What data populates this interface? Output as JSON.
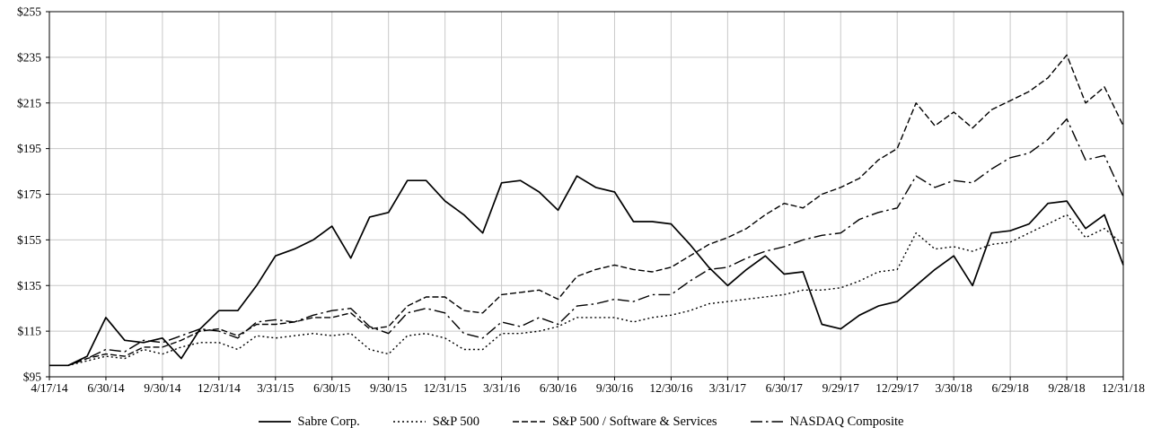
{
  "chart_data": {
    "type": "line",
    "title": "",
    "xlabel": "",
    "ylabel": "",
    "ylim": [
      95,
      255
    ],
    "y_ticks": [
      95,
      115,
      135,
      155,
      175,
      195,
      215,
      235,
      255
    ],
    "y_tick_labels": [
      "$95",
      "$115",
      "$135",
      "$155",
      "$175",
      "$195",
      "$215",
      "$235",
      "$255"
    ],
    "x_tick_labels": [
      "4/17/14",
      "6/30/14",
      "9/30/14",
      "12/31/14",
      "3/31/15",
      "6/30/15",
      "9/30/15",
      "12/31/15",
      "3/31/16",
      "6/30/16",
      "9/30/16",
      "12/30/16",
      "3/31/17",
      "6/30/17",
      "9/29/17",
      "12/29/17",
      "3/30/18",
      "6/29/18",
      "9/28/18",
      "12/31/18"
    ],
    "x_tick_indices": [
      0,
      3,
      6,
      9,
      12,
      15,
      18,
      21,
      24,
      27,
      30,
      33,
      36,
      39,
      42,
      45,
      48,
      51,
      54,
      57
    ],
    "points_per_series": 58,
    "grid": "horizontal+vertical",
    "legend_position": "bottom",
    "colors": {
      "axis": "#000000",
      "grid": "#c8c8c8",
      "background": "#ffffff",
      "line": "#000000"
    },
    "series": [
      {
        "id": "sabre",
        "name": "Sabre Corp.",
        "style": "solid",
        "color": "#000000",
        "values": [
          100,
          100,
          104,
          121,
          111,
          110,
          112,
          103,
          116,
          124,
          124,
          135,
          148,
          151,
          155,
          161,
          147,
          165,
          167,
          181,
          181,
          172,
          166,
          158,
          180,
          181,
          176,
          168,
          183,
          178,
          176,
          163,
          163,
          162,
          153,
          143,
          135,
          142,
          148,
          140,
          141,
          118,
          116,
          122,
          126,
          128,
          135,
          142,
          148,
          135,
          158,
          159,
          162,
          171,
          172,
          160,
          166,
          144
        ]
      },
      {
        "id": "sp500",
        "name": "S&P 500",
        "style": "dotted",
        "color": "#000000",
        "values": [
          100,
          100,
          102,
          104,
          103,
          107,
          105,
          108,
          110,
          110,
          107,
          113,
          112,
          113,
          114,
          113,
          114,
          107,
          105,
          113,
          114,
          112,
          107,
          107,
          114,
          114,
          115,
          117,
          121,
          121,
          121,
          119,
          121,
          122,
          124,
          127,
          128,
          129,
          130,
          131,
          133,
          133,
          134,
          137,
          141,
          142,
          158,
          151,
          152,
          150,
          153,
          154,
          158,
          162,
          166,
          156,
          160,
          153
        ]
      },
      {
        "id": "sp500-software-services",
        "name": "S&P 500 / Software & Services",
        "style": "dashed",
        "color": "#000000",
        "values": [
          100,
          100,
          103,
          105,
          104,
          108,
          108,
          111,
          115,
          116,
          113,
          118,
          118,
          119,
          121,
          121,
          123,
          116,
          117,
          126,
          130,
          130,
          124,
          123,
          131,
          132,
          133,
          129,
          139,
          142,
          144,
          142,
          141,
          143,
          148,
          153,
          156,
          160,
          166,
          171,
          169,
          175,
          178,
          182,
          190,
          195,
          215,
          205,
          211,
          204,
          212,
          216,
          220,
          226,
          236,
          215,
          222,
          205
        ]
      },
      {
        "id": "nasdaq",
        "name": "NASDAQ Composite",
        "style": "dashdot",
        "color": "#000000",
        "values": [
          100,
          100,
          103,
          107,
          106,
          111,
          110,
          113,
          116,
          115,
          112,
          119,
          120,
          119,
          122,
          124,
          125,
          117,
          114,
          123,
          125,
          123,
          114,
          112,
          119,
          117,
          121,
          118,
          126,
          127,
          129,
          128,
          131,
          131,
          137,
          142,
          143,
          147,
          150,
          152,
          155,
          157,
          158,
          164,
          167,
          169,
          183,
          178,
          181,
          180,
          186,
          191,
          193,
          199,
          208,
          190,
          192,
          174
        ]
      }
    ]
  }
}
